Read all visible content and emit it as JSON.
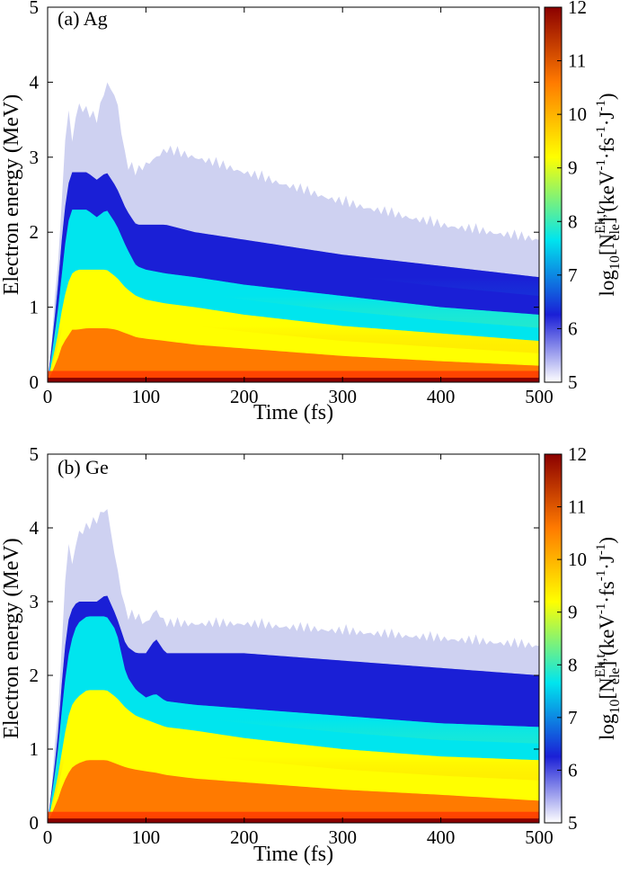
{
  "colormap": [
    "#ffffff",
    "#1a1fd6",
    "#00e5ee",
    "#ffff00",
    "#ff7a00",
    "#8b0000"
  ],
  "chart_data": [
    {
      "type": "heatmap",
      "panel_label": "(a) Ag",
      "xlabel": "Time (fs)",
      "ylabel": "Electron energy (MeV)",
      "xlim": [
        0,
        500
      ],
      "ylim": [
        0,
        5
      ],
      "xticks": [
        "0",
        "100",
        "200",
        "300",
        "400",
        "500"
      ],
      "yticks": [
        "0",
        "1",
        "2",
        "3",
        "4",
        "5"
      ],
      "colorbar": {
        "label_main": "log",
        "label_sub10": "10",
        "label_bracket": "[N",
        "label_sup": "Ek,t",
        "label_sub": "ele",
        "label_units": "] (keV",
        "label_exp1": "-1",
        "label_mid": "·fs",
        "label_exp2": "-1",
        "label_j": "·J",
        "label_exp3": "-1",
        "label_close": ")",
        "range": [
          5,
          12
        ],
        "ticks": [
          "5",
          "6",
          "7",
          "8",
          "9",
          "10",
          "11",
          "12"
        ]
      },
      "envelope": {
        "time": [
          0,
          10,
          15,
          20,
          25,
          30,
          40,
          50,
          60,
          70,
          80,
          90,
          100,
          120,
          150,
          200,
          300,
          400,
          500
        ],
        "max_energy": [
          0,
          1.6,
          2.6,
          3.9,
          3.3,
          3.8,
          3.7,
          3.6,
          4.1,
          3.9,
          3.0,
          2.9,
          3.0,
          3.2,
          3.1,
          2.9,
          2.5,
          2.2,
          2.0
        ],
        "blue_edge": [
          0,
          1.2,
          2.0,
          2.6,
          2.8,
          2.8,
          2.8,
          2.7,
          2.8,
          2.6,
          2.3,
          2.1,
          2.1,
          2.1,
          2.0,
          1.9,
          1.7,
          1.55,
          1.4
        ],
        "cyan_edge": [
          0,
          0.9,
          1.5,
          2.1,
          2.3,
          2.3,
          2.3,
          2.2,
          2.3,
          2.1,
          1.8,
          1.55,
          1.5,
          1.45,
          1.4,
          1.3,
          1.15,
          1.0,
          0.9
        ],
        "yellow_edge": [
          0,
          0.6,
          1.0,
          1.3,
          1.45,
          1.5,
          1.5,
          1.5,
          1.5,
          1.4,
          1.25,
          1.15,
          1.1,
          1.05,
          1.0,
          0.9,
          0.75,
          0.65,
          0.55
        ],
        "orange_edge": [
          0,
          0.3,
          0.5,
          0.6,
          0.7,
          0.7,
          0.72,
          0.72,
          0.72,
          0.7,
          0.65,
          0.6,
          0.58,
          0.55,
          0.5,
          0.45,
          0.35,
          0.28,
          0.22
        ]
      }
    },
    {
      "type": "heatmap",
      "panel_label": "(b) Ge",
      "xlabel": "Time (fs)",
      "ylabel": "Electron energy (MeV)",
      "xlim": [
        0,
        500
      ],
      "ylim": [
        0,
        5
      ],
      "xticks": [
        "0",
        "100",
        "200",
        "300",
        "400",
        "500"
      ],
      "yticks": [
        "0",
        "1",
        "2",
        "3",
        "4",
        "5"
      ],
      "colorbar": {
        "label_main": "log",
        "label_sub10": "10",
        "label_bracket": "[N",
        "label_sup": "Ek,t",
        "label_sub": "ele",
        "label_units": "] (keV",
        "label_exp1": "-1",
        "label_mid": "·fs",
        "label_exp2": "-1",
        "label_j": "·J",
        "label_exp3": "-1",
        "label_close": ")",
        "range": [
          5,
          12
        ],
        "ticks": [
          "5",
          "6",
          "7",
          "8",
          "9",
          "10",
          "11",
          "12"
        ]
      },
      "envelope": {
        "time": [
          0,
          10,
          15,
          20,
          25,
          30,
          40,
          50,
          60,
          70,
          80,
          90,
          100,
          110,
          120,
          150,
          200,
          300,
          400,
          500
        ],
        "max_energy": [
          0,
          1.5,
          2.6,
          4.0,
          3.6,
          4.0,
          4.1,
          4.2,
          4.4,
          3.6,
          2.9,
          2.9,
          2.8,
          3.0,
          2.8,
          2.8,
          2.8,
          2.7,
          2.6,
          2.5
        ],
        "blue_edge": [
          0,
          1.1,
          2.0,
          2.7,
          2.9,
          3.0,
          3.0,
          3.0,
          3.1,
          2.8,
          2.4,
          2.3,
          2.3,
          2.5,
          2.3,
          2.3,
          2.3,
          2.2,
          2.1,
          2.0
        ],
        "cyan_edge": [
          0,
          0.9,
          1.6,
          2.2,
          2.5,
          2.7,
          2.8,
          2.8,
          2.8,
          2.6,
          2.0,
          1.8,
          1.7,
          1.75,
          1.65,
          1.6,
          1.55,
          1.45,
          1.35,
          1.3
        ],
        "yellow_edge": [
          0,
          0.6,
          1.0,
          1.4,
          1.6,
          1.7,
          1.8,
          1.8,
          1.8,
          1.7,
          1.55,
          1.45,
          1.4,
          1.35,
          1.3,
          1.25,
          1.15,
          1.0,
          0.9,
          0.85
        ],
        "orange_edge": [
          0,
          0.3,
          0.5,
          0.65,
          0.75,
          0.8,
          0.85,
          0.85,
          0.85,
          0.8,
          0.75,
          0.72,
          0.7,
          0.68,
          0.65,
          0.6,
          0.55,
          0.45,
          0.38,
          0.3
        ]
      }
    }
  ]
}
